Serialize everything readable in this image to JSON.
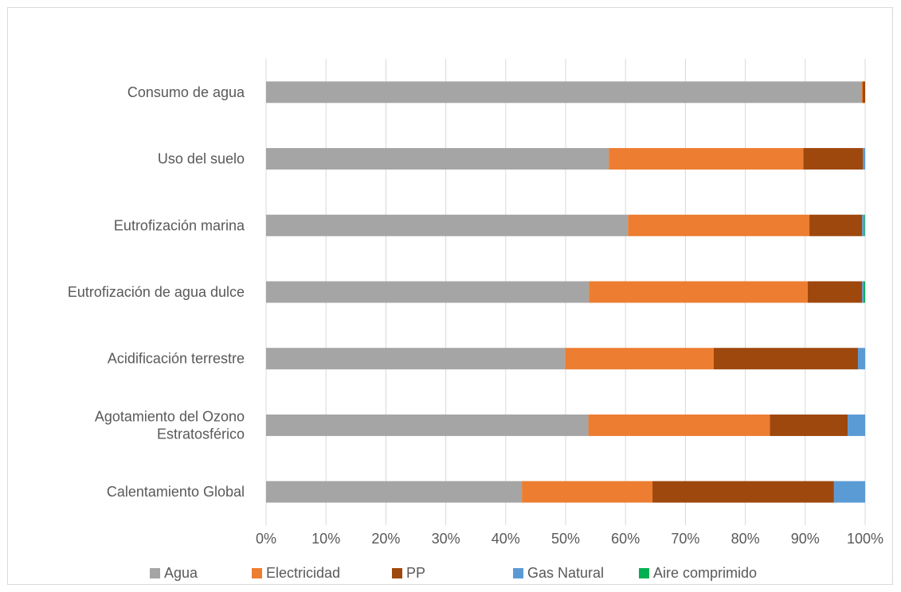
{
  "chart_data": {
    "type": "bar",
    "orientation": "horizontal",
    "stacking": "percent",
    "categories": [
      [
        "Consumo de agua"
      ],
      [
        "Uso del suelo"
      ],
      [
        "Eutrofización marina"
      ],
      [
        "Eutrofización de agua dulce"
      ],
      [
        "Acidificación terrestre"
      ],
      [
        "Agotamiento del Ozono",
        "Estratosférico"
      ],
      [
        "Calentamiento Global"
      ]
    ],
    "series": [
      {
        "name": "Agua",
        "color": "#a5a5a5",
        "values": [
          99.4,
          57.2,
          60.4,
          53.9,
          49.9,
          53.8,
          42.7
        ]
      },
      {
        "name": "Electricidad",
        "color": "#ed7d31",
        "values": [
          0.2,
          32.5,
          30.3,
          36.5,
          24.8,
          30.3,
          21.8
        ]
      },
      {
        "name": "PP",
        "color": "#9e480e",
        "values": [
          0.4,
          9.9,
          8.8,
          9.1,
          24.1,
          13.0,
          30.3
        ]
      },
      {
        "name": "Gas Natural",
        "color": "#5b9bd5",
        "values": [
          0.0,
          0.4,
          0.4,
          0.3,
          1.2,
          2.9,
          5.2
        ]
      },
      {
        "name": "Aire comprimido",
        "color": "#00b050",
        "values": [
          0.0,
          0.0,
          0.1,
          0.2,
          0.0,
          0.0,
          0.0
        ]
      }
    ],
    "xticks": [
      "0%",
      "10%",
      "20%",
      "30%",
      "40%",
      "50%",
      "60%",
      "70%",
      "80%",
      "90%",
      "100%"
    ],
    "xlim": [
      0,
      100
    ],
    "grid": "vertical",
    "legend": "bottom"
  }
}
